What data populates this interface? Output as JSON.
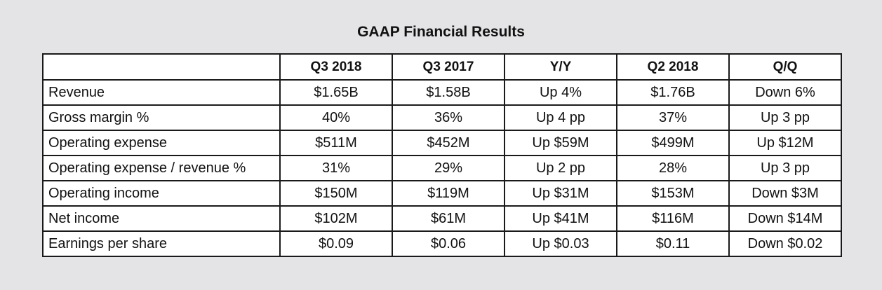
{
  "title": "GAAP Financial Results",
  "table": {
    "corner": "",
    "columns": [
      "Q3 2018",
      "Q3 2017",
      "Y/Y",
      "Q2 2018",
      "Q/Q"
    ],
    "rows": [
      {
        "label": "Revenue",
        "values": [
          "$1.65B",
          "$1.58B",
          "Up 4%",
          "$1.76B",
          "Down 6%"
        ]
      },
      {
        "label": "Gross margin %",
        "values": [
          "40%",
          "36%",
          "Up 4 pp",
          "37%",
          "Up 3 pp"
        ]
      },
      {
        "label": "Operating expense",
        "values": [
          "$511M",
          "$452M",
          "Up $59M",
          "$499M",
          "Up $12M"
        ]
      },
      {
        "label": "Operating expense / revenue %",
        "values": [
          "31%",
          "29%",
          "Up 2 pp",
          "28%",
          "Up 3 pp"
        ]
      },
      {
        "label": "Operating income",
        "values": [
          "$150M",
          "$119M",
          "Up $31M",
          "$153M",
          "Down $3M"
        ]
      },
      {
        "label": "Net income",
        "values": [
          "$102M",
          "$61M",
          "Up $41M",
          "$116M",
          "Down $14M"
        ]
      },
      {
        "label": "Earnings per share",
        "values": [
          "$0.09",
          "$0.06",
          "Up $0.03",
          "$0.11",
          "Down $0.02"
        ]
      }
    ]
  }
}
